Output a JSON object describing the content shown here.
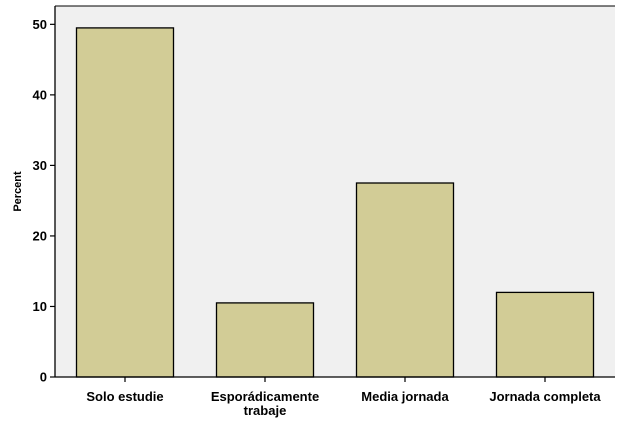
{
  "chart_data": {
    "type": "bar",
    "title": "",
    "xlabel": "",
    "ylabel": "Percent",
    "categories": [
      [
        "Solo estudie"
      ],
      [
        "Esporádicamente",
        "trabaje"
      ],
      [
        "Media jornada"
      ],
      [
        "Jornada completa"
      ]
    ],
    "values": [
      49.5,
      10.5,
      27.5,
      12.0
    ],
    "ylim": [
      0,
      52.6
    ],
    "yticks": [
      0,
      10,
      20,
      30,
      40,
      50
    ],
    "grid": false,
    "legend": "none",
    "colors": {
      "bar_fill": "#D2CC96",
      "bar_stroke": "#000000",
      "plot_background": "#F0F0F0",
      "axis": "#000000"
    }
  }
}
